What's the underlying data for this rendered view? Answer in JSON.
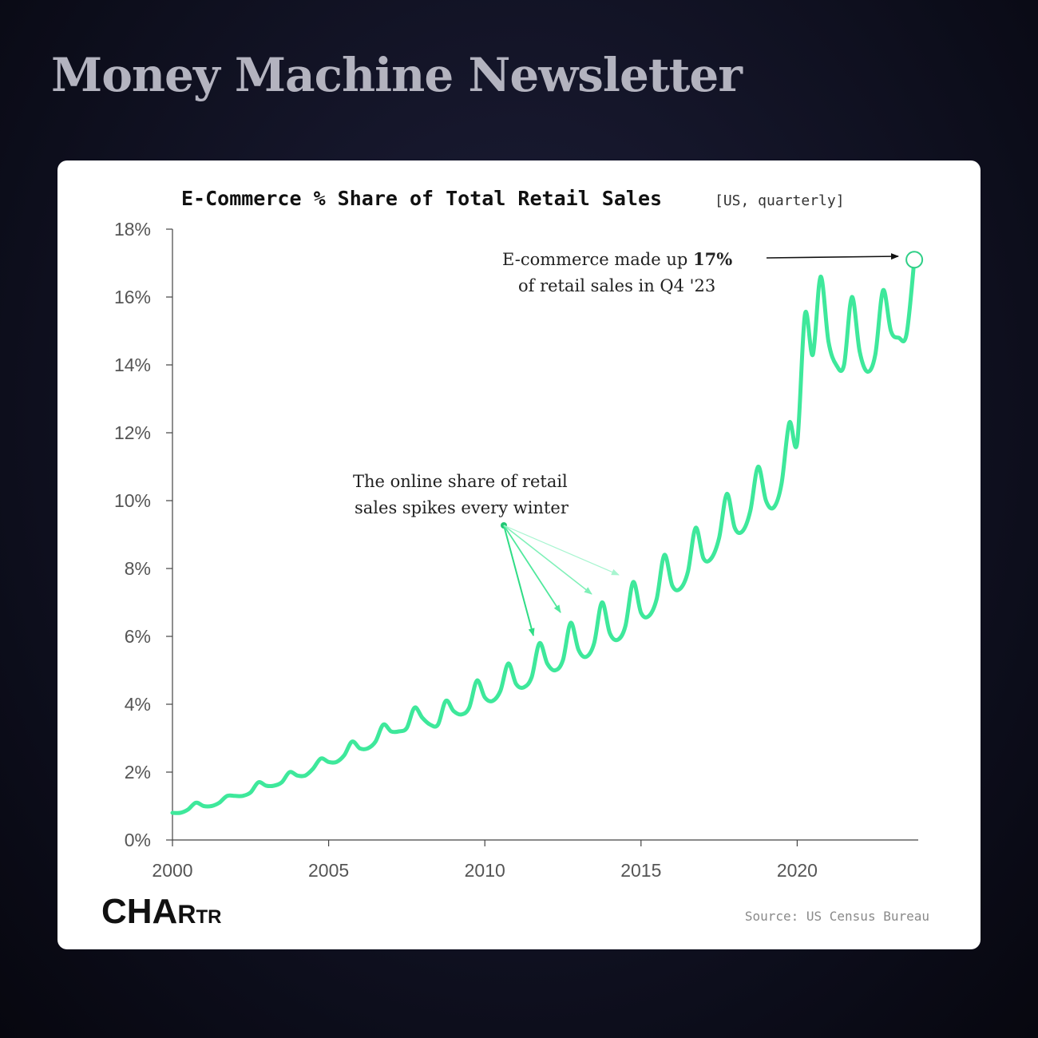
{
  "header": {
    "title": "Money Machine Newsletter"
  },
  "chart_data": {
    "type": "line",
    "title": "E-Commerce % Share of Total Retail Sales",
    "subtitle": "[US, quarterly]",
    "xlabel": "",
    "ylabel": "",
    "ylim": [
      0,
      18
    ],
    "xlim": [
      2000,
      2023.875
    ],
    "grid": false,
    "line_color": "#3ee89b",
    "y_ticks": [
      "0%",
      "2%",
      "4%",
      "6%",
      "8%",
      "10%",
      "12%",
      "14%",
      "16%",
      "18%"
    ],
    "x_ticks": [
      "2000",
      "2005",
      "2010",
      "2015",
      "2020"
    ],
    "series": [
      {
        "x": [
          2000.0,
          2000.25,
          2000.5,
          2000.75,
          2001.0,
          2001.25,
          2001.5,
          2001.75,
          2002.0,
          2002.25,
          2002.5,
          2002.75,
          2003.0,
          2003.25,
          2003.5,
          2003.75,
          2004.0,
          2004.25,
          2004.5,
          2004.75,
          2005.0,
          2005.25,
          2005.5,
          2005.75,
          2006.0,
          2006.25,
          2006.5,
          2006.75,
          2007.0,
          2007.25,
          2007.5,
          2007.75,
          2008.0,
          2008.25,
          2008.5,
          2008.75,
          2009.0,
          2009.25,
          2009.5,
          2009.75,
          2010.0,
          2010.25,
          2010.5,
          2010.75,
          2011.0,
          2011.25,
          2011.5,
          2011.75,
          2012.0,
          2012.25,
          2012.5,
          2012.75,
          2013.0,
          2013.25,
          2013.5,
          2013.75,
          2014.0,
          2014.25,
          2014.5,
          2014.75,
          2015.0,
          2015.25,
          2015.5,
          2015.75,
          2016.0,
          2016.25,
          2016.5,
          2016.75,
          2017.0,
          2017.25,
          2017.5,
          2017.75,
          2018.0,
          2018.25,
          2018.5,
          2018.75,
          2019.0,
          2019.25,
          2019.5,
          2019.75,
          2020.0,
          2020.25,
          2020.5,
          2020.75,
          2021.0,
          2021.25,
          2021.5,
          2021.75,
          2022.0,
          2022.25,
          2022.5,
          2022.75,
          2023.0,
          2023.25,
          2023.5,
          2023.75
        ],
        "values": [
          0.8,
          0.8,
          0.9,
          1.1,
          1.0,
          1.0,
          1.1,
          1.3,
          1.3,
          1.3,
          1.4,
          1.7,
          1.6,
          1.6,
          1.7,
          2.0,
          1.9,
          1.9,
          2.1,
          2.4,
          2.3,
          2.3,
          2.5,
          2.9,
          2.7,
          2.7,
          2.9,
          3.4,
          3.2,
          3.2,
          3.3,
          3.9,
          3.6,
          3.4,
          3.4,
          4.1,
          3.8,
          3.7,
          3.9,
          4.7,
          4.2,
          4.1,
          4.4,
          5.2,
          4.6,
          4.5,
          4.8,
          5.8,
          5.2,
          5.0,
          5.3,
          6.4,
          5.6,
          5.4,
          5.8,
          7.0,
          6.1,
          5.9,
          6.3,
          7.6,
          6.7,
          6.6,
          7.1,
          8.4,
          7.5,
          7.4,
          7.9,
          9.2,
          8.3,
          8.3,
          8.9,
          10.2,
          9.2,
          9.1,
          9.7,
          11.0,
          10.0,
          9.8,
          10.5,
          12.3,
          11.7,
          15.5,
          14.3,
          16.6,
          14.7,
          14.0,
          14.0,
          16.0,
          14.4,
          13.8,
          14.3,
          16.2,
          15.0,
          14.8,
          14.9,
          17.1
        ]
      }
    ],
    "annotations": [
      {
        "lines": [
          "E-commerce made up ",
          "17%",
          "of retail sales in Q4 '23"
        ]
      },
      {
        "lines": [
          "The online share of retail",
          "sales spikes every winter"
        ]
      }
    ],
    "source": "Source: US Census Bureau",
    "logo": "CHARTR"
  }
}
